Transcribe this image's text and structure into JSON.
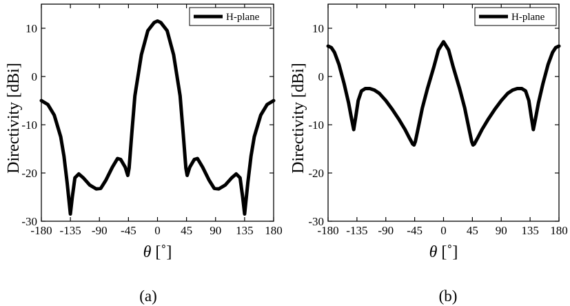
{
  "chart_data": [
    {
      "type": "line",
      "panel_label": "(a)",
      "xlabel_symbol": "θ",
      "xlabel_unit": "[˚]",
      "ylabel": "Directivity [dBi]",
      "xlim": [
        -180,
        180
      ],
      "ylim": [
        -30,
        15
      ],
      "xticks": [
        -180,
        -135,
        -90,
        -45,
        0,
        45,
        90,
        135,
        180
      ],
      "yticks": [
        -30,
        -20,
        -10,
        0,
        10
      ],
      "legend": "H-plane",
      "legend_position": "top-right",
      "grid": false,
      "series": [
        {
          "name": "H-plane",
          "color": "#000000",
          "x": [
            -180,
            -170,
            -160,
            -150,
            -145,
            -140,
            -135,
            -132,
            -128,
            -122,
            -115,
            -105,
            -95,
            -88,
            -80,
            -70,
            -62,
            -57,
            -50,
            -46,
            -44,
            -40,
            -35,
            -25,
            -15,
            -5,
            0,
            5,
            15,
            25,
            35,
            40,
            44,
            46,
            50,
            57,
            62,
            70,
            80,
            88,
            95,
            105,
            115,
            122,
            128,
            132,
            135,
            140,
            145,
            150,
            160,
            170,
            180
          ],
          "y": [
            -5,
            -5.8,
            -8,
            -12.5,
            -16.5,
            -22,
            -28.5,
            -25,
            -21,
            -20.2,
            -21,
            -22.5,
            -23.3,
            -23.2,
            -21.5,
            -18.8,
            -17,
            -17.2,
            -18.8,
            -20.5,
            -19,
            -12,
            -4,
            4.5,
            9.5,
            11.2,
            11.5,
            11.2,
            9.5,
            4.5,
            -4,
            -12,
            -19,
            -20.5,
            -18.8,
            -17.2,
            -17,
            -18.8,
            -21.5,
            -23.2,
            -23.3,
            -22.5,
            -21,
            -20.2,
            -21,
            -25,
            -28.5,
            -22,
            -16.5,
            -12.5,
            -8,
            -5.8,
            -5
          ]
        }
      ]
    },
    {
      "type": "line",
      "panel_label": "(b)",
      "xlabel_symbol": "θ",
      "xlabel_unit": "[˚]",
      "ylabel": "Directivity [dBi]",
      "xlim": [
        -180,
        180
      ],
      "ylim": [
        -30,
        15
      ],
      "xticks": [
        -180,
        -135,
        -90,
        -45,
        0,
        45,
        90,
        135,
        180
      ],
      "yticks": [
        -30,
        -20,
        -10,
        0,
        10
      ],
      "legend": "H-plane",
      "legend_position": "top-right",
      "grid": false,
      "series": [
        {
          "name": "H-plane",
          "color": "#000000",
          "x": [
            -180,
            -175,
            -170,
            -163,
            -155,
            -148,
            -143,
            -140,
            -137,
            -133,
            -128,
            -122,
            -115,
            -108,
            -100,
            -90,
            -80,
            -70,
            -60,
            -53,
            -48,
            -46,
            -44,
            -40,
            -33,
            -25,
            -15,
            -8,
            0,
            8,
            15,
            25,
            33,
            40,
            44,
            46,
            48,
            53,
            60,
            70,
            80,
            90,
            100,
            108,
            115,
            122,
            128,
            133,
            137,
            140,
            143,
            148,
            155,
            163,
            170,
            175,
            180
          ],
          "y": [
            6.3,
            6,
            5,
            2.5,
            -1.5,
            -5.5,
            -9,
            -11,
            -8.5,
            -5,
            -3,
            -2.5,
            -2.5,
            -2.8,
            -3.5,
            -5,
            -6.8,
            -8.8,
            -11,
            -12.8,
            -14,
            -14.2,
            -13.5,
            -11,
            -6.5,
            -2.5,
            2,
            5.5,
            7.2,
            5.5,
            2,
            -2.5,
            -6.5,
            -11,
            -13.5,
            -14.2,
            -14,
            -12.8,
            -11,
            -8.8,
            -6.8,
            -5,
            -3.5,
            -2.8,
            -2.5,
            -2.5,
            -3,
            -5,
            -8.5,
            -11,
            -9,
            -5.5,
            -1.5,
            2.5,
            5,
            6,
            6.3
          ]
        }
      ]
    }
  ]
}
